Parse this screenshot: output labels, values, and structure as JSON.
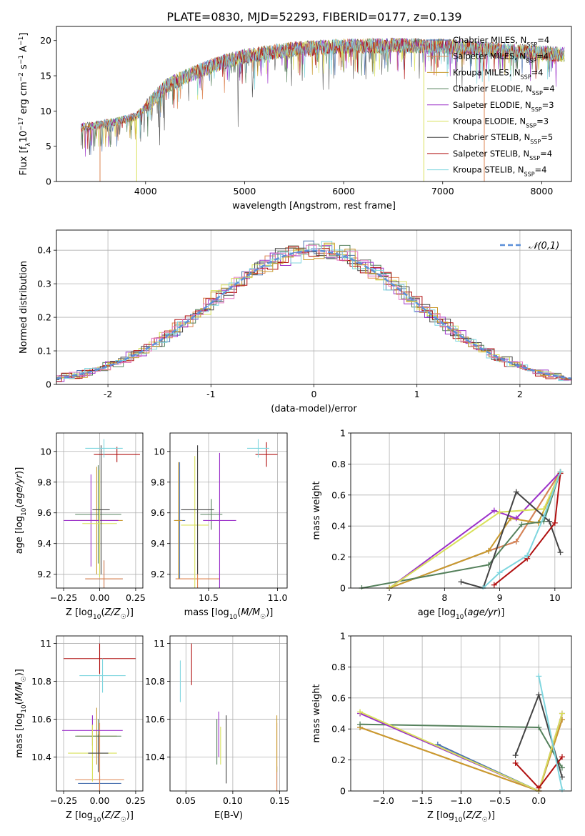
{
  "figure_title": "PLATE=0830, MJD=52293, FIBERID=0177, z=0.139",
  "models": [
    {
      "name": "Chabrier MILES",
      "nssp": "4",
      "color": "#4c72b0"
    },
    {
      "name": "Salpeter MILES",
      "nssp": "4",
      "color": "#dd8452"
    },
    {
      "name": "Kroupa MILES",
      "nssp": "4",
      "color": "#c99a2e"
    },
    {
      "name": "Chabrier ELODIE",
      "nssp": "4",
      "color": "#55815c"
    },
    {
      "name": "Salpeter ELODIE",
      "nssp": "3",
      "color": "#9b30c9"
    },
    {
      "name": "Kroupa ELODIE",
      "nssp": "3",
      "color": "#d8e05a"
    },
    {
      "name": "Chabrier STELIB",
      "nssp": "5",
      "color": "#444444"
    },
    {
      "name": "Salpeter STELIB",
      "nssp": "4",
      "color": "#b01010"
    },
    {
      "name": "Kroupa STELIB",
      "nssp": "4",
      "color": "#7fd6df"
    }
  ],
  "chart_data": [
    {
      "id": "spectrum",
      "type": "line",
      "xlabel": "wavelength [Angstrom, rest frame]",
      "ylabel": "Flux [f_λ 10^-17 erg cm^-2 s^-1 A^-1]",
      "xlim": [
        3100,
        8300
      ],
      "ylim": [
        0,
        22
      ],
      "xticks": [
        4000,
        5000,
        6000,
        7000,
        8000
      ],
      "yticks": [
        0,
        5,
        10,
        15,
        20
      ],
      "grid": false,
      "legend": "top-right",
      "trend": [
        [
          3350,
          7.7
        ],
        [
          3500,
          8.0
        ],
        [
          3700,
          8.5
        ],
        [
          3900,
          9.2
        ],
        [
          4000,
          10.5
        ],
        [
          4200,
          13.5
        ],
        [
          4500,
          15.5
        ],
        [
          4800,
          17.0
        ],
        [
          5000,
          17.8
        ],
        [
          5500,
          18.8
        ],
        [
          6000,
          19.2
        ],
        [
          6500,
          19.3
        ],
        [
          7000,
          19.2
        ],
        [
          7500,
          18.7
        ],
        [
          8000,
          18.2
        ],
        [
          8230,
          18.0
        ]
      ],
      "spikes": [
        [
          3540,
          0
        ],
        [
          3910,
          0
        ],
        [
          6810,
          0
        ],
        [
          7420,
          0
        ]
      ]
    },
    {
      "id": "residuals",
      "type": "histogram",
      "xlabel": "(data-model)/error",
      "ylabel": "Normed distribution",
      "xlim": [
        -2.5,
        2.5
      ],
      "ylim": [
        0,
        0.46
      ],
      "xticks": [
        -2,
        -1,
        0,
        1,
        2
      ],
      "yticks": [
        0.0,
        0.1,
        0.2,
        0.3,
        0.4
      ],
      "grid": true,
      "legend": "top-right",
      "reference": {
        "name": "𝒩(0,1)",
        "mean": 0,
        "sigma": 1,
        "color": "#5b8fd9"
      },
      "bin_width": 0.1
    },
    {
      "id": "age_vs_Z",
      "type": "errorbar",
      "xlabel": "Z [log10(Z/Z☉)]",
      "ylabel": "age [log10(age/yr)]",
      "xlim": [
        -0.3,
        0.3
      ],
      "ylim": [
        9.11,
        10.12
      ],
      "xticks": [
        -0.25,
        0.0,
        0.25
      ],
      "xticklabels": [
        "−0.25",
        "0.00",
        "0.25"
      ],
      "yticks": [
        9.2,
        9.4,
        9.6,
        9.8,
        10.0
      ],
      "grid": true,
      "points": [
        {
          "model": 0,
          "x": 0.03,
          "xerr": 0.13,
          "y": 9.17,
          "yerr": 0.12
        },
        {
          "model": 1,
          "x": 0.03,
          "xerr": 0.13,
          "y": 9.17,
          "yerr": 0.12
        },
        {
          "model": 2,
          "x": -0.02,
          "xerr": 0.18,
          "y": 9.55,
          "yerr": 0.35
        },
        {
          "model": 3,
          "x": -0.01,
          "xerr": 0.16,
          "y": 9.59,
          "yerr": 0.32
        },
        {
          "model": 4,
          "x": -0.06,
          "xerr": 0.19,
          "y": 9.55,
          "yerr": 0.3
        },
        {
          "model": 5,
          "x": 0.0,
          "xerr": 0.12,
          "y": 9.53,
          "yerr": 0.35
        },
        {
          "model": 6,
          "x": 0.01,
          "xerr": 0.06,
          "y": 9.62,
          "yerr": 0.42
        },
        {
          "model": 7,
          "x": 0.12,
          "xerr": 0.16,
          "y": 9.98,
          "yerr": 0.05
        },
        {
          "model": 8,
          "x": 0.03,
          "xerr": 0.13,
          "y": 10.02,
          "yerr": 0.06
        }
      ]
    },
    {
      "id": "age_vs_mass",
      "type": "errorbar",
      "xlabel": "mass [log10(M/M☉)]",
      "ylabel": "",
      "xlim": [
        10.22,
        11.07
      ],
      "ylim": [
        9.11,
        10.12
      ],
      "xticks": [
        10.5,
        11.0
      ],
      "xticklabels": [
        "10.5",
        "11.0"
      ],
      "yticks": [
        9.2,
        9.4,
        9.6,
        9.8,
        10.0
      ],
      "grid": true,
      "points": [
        {
          "model": 0,
          "x": 10.29,
          "xerr": 0.04,
          "y": 9.55,
          "yerr": 0.38
        },
        {
          "model": 1,
          "x": 10.42,
          "xerr": 0.16,
          "y": 9.17,
          "yerr": 0.12
        },
        {
          "model": 2,
          "x": 10.28,
          "xerr": 0.03,
          "y": 9.55,
          "yerr": 0.38
        },
        {
          "model": 3,
          "x": 10.52,
          "xerr": 0.08,
          "y": 9.59,
          "yerr": 0.1
        },
        {
          "model": 4,
          "x": 10.58,
          "xerr": 0.12,
          "y": 9.55,
          "yerr": 0.44
        },
        {
          "model": 5,
          "x": 10.4,
          "xerr": 0.1,
          "y": 9.52,
          "yerr": 0.45
        },
        {
          "model": 6,
          "x": 10.42,
          "xerr": 0.12,
          "y": 9.62,
          "yerr": 0.42
        },
        {
          "model": 7,
          "x": 10.92,
          "xerr": 0.08,
          "y": 9.98,
          "yerr": 0.08
        },
        {
          "model": 8,
          "x": 10.86,
          "xerr": 0.08,
          "y": 10.02,
          "yerr": 0.06
        }
      ]
    },
    {
      "id": "weight_vs_age",
      "type": "line",
      "xlabel": "age [log10(age/yr)]",
      "ylabel": "mass weight",
      "xlim": [
        6.3,
        10.3
      ],
      "ylim": [
        0.0,
        1.0
      ],
      "xticks": [
        7,
        8,
        9,
        10
      ],
      "yticks": [
        0.0,
        0.2,
        0.4,
        0.6,
        0.8,
        1.0
      ],
      "grid": true,
      "series": [
        {
          "model": 0,
          "points": [
            [
              7.0,
              0.0
            ],
            [
              8.8,
              0.24
            ],
            [
              9.3,
              0.3
            ],
            [
              10.1,
              0.75
            ]
          ]
        },
        {
          "model": 1,
          "points": [
            [
              7.0,
              0.0
            ],
            [
              8.8,
              0.24
            ],
            [
              9.3,
              0.3
            ],
            [
              10.1,
              0.75
            ]
          ]
        },
        {
          "model": 2,
          "points": [
            [
              7.0,
              0.0
            ],
            [
              8.8,
              0.24
            ],
            [
              9.2,
              0.45
            ],
            [
              9.7,
              0.42
            ],
            [
              10.1,
              0.74
            ]
          ]
        },
        {
          "model": 3,
          "points": [
            [
              6.5,
              0.0
            ],
            [
              8.8,
              0.15
            ],
            [
              9.4,
              0.41
            ],
            [
              9.8,
              0.43
            ],
            [
              10.1,
              0.75
            ]
          ]
        },
        {
          "model": 4,
          "points": [
            [
              7.0,
              0.0
            ],
            [
              8.9,
              0.5
            ],
            [
              9.3,
              0.45
            ],
            [
              10.1,
              0.75
            ]
          ]
        },
        {
          "model": 5,
          "points": [
            [
              7.0,
              0.0
            ],
            [
              9.0,
              0.49
            ],
            [
              9.8,
              0.51
            ],
            [
              10.1,
              0.75
            ]
          ]
        },
        {
          "model": 6,
          "points": [
            [
              8.3,
              0.04
            ],
            [
              8.7,
              0.0
            ],
            [
              9.3,
              0.62
            ],
            [
              9.9,
              0.43
            ],
            [
              10.1,
              0.23
            ]
          ]
        },
        {
          "model": 7,
          "points": [
            [
              8.9,
              0.02
            ],
            [
              9.5,
              0.19
            ],
            [
              10.0,
              0.42
            ],
            [
              10.1,
              0.74
            ]
          ]
        },
        {
          "model": 8,
          "points": [
            [
              8.7,
              0.0
            ],
            [
              9.0,
              0.1
            ],
            [
              9.5,
              0.21
            ],
            [
              9.8,
              0.46
            ],
            [
              10.1,
              0.75
            ]
          ]
        }
      ]
    },
    {
      "id": "mass_vs_Z",
      "type": "errorbar",
      "xlabel": "Z [log10(Z/Z☉)]",
      "ylabel": "mass [log10(M/M☉)]",
      "xlim": [
        -0.3,
        0.3
      ],
      "ylim": [
        10.22,
        11.04
      ],
      "xticks": [
        -0.25,
        0.0,
        0.25
      ],
      "xticklabels": [
        "−0.25",
        "0.00",
        "0.25"
      ],
      "yticks": [
        10.4,
        10.6,
        10.8,
        11.0
      ],
      "grid": true,
      "points": [
        {
          "model": 0,
          "x": 0.0,
          "xerr": 0.15,
          "y": 10.26,
          "yerr": 0.04
        },
        {
          "model": 1,
          "x": 0.0,
          "xerr": 0.17,
          "y": 10.28,
          "yerr": 0.3
        },
        {
          "model": 2,
          "x": -0.02,
          "xerr": 0.14,
          "y": 10.51,
          "yerr": 0.15
        },
        {
          "model": 3,
          "x": -0.01,
          "xerr": 0.16,
          "y": 10.51,
          "yerr": 0.09
        },
        {
          "model": 4,
          "x": -0.05,
          "xerr": 0.21,
          "y": 10.54,
          "yerr": 0.08
        },
        {
          "model": 5,
          "x": -0.05,
          "xerr": 0.17,
          "y": 10.42,
          "yerr": 0.15
        },
        {
          "model": 6,
          "x": -0.01,
          "xerr": 0.07,
          "y": 10.42,
          "yerr": 0.1
        },
        {
          "model": 7,
          "x": 0.0,
          "xerr": 0.25,
          "y": 10.92,
          "yerr": 0.08
        },
        {
          "model": 8,
          "x": 0.02,
          "xerr": 0.16,
          "y": 10.83,
          "yerr": 0.09
        }
      ]
    },
    {
      "id": "mass_vs_ebv",
      "type": "errorbar",
      "xlabel": "E(B-V)",
      "ylabel": "",
      "xlim": [
        0.033,
        0.158
      ],
      "ylim": [
        10.22,
        11.04
      ],
      "xticks": [
        0.05,
        0.1,
        0.15
      ],
      "xticklabels": [
        "0.05",
        "0.10",
        "0.15"
      ],
      "yticks": [
        10.4,
        10.6,
        10.8,
        11.0
      ],
      "grid": true,
      "points": [
        {
          "model": 0,
          "x": 0.147,
          "xerr": 0.0,
          "y": 10.28,
          "yerr": 0.07
        },
        {
          "model": 1,
          "x": 0.147,
          "xerr": 0.0,
          "y": 10.4,
          "yerr": 0.18
        },
        {
          "model": 2,
          "x": 0.147,
          "xerr": 0.0,
          "y": 10.47,
          "yerr": 0.15
        },
        {
          "model": 3,
          "x": 0.083,
          "xerr": 0.0,
          "y": 10.48,
          "yerr": 0.12
        },
        {
          "model": 4,
          "x": 0.085,
          "xerr": 0.0,
          "y": 10.52,
          "yerr": 0.12
        },
        {
          "model": 5,
          "x": 0.087,
          "xerr": 0.0,
          "y": 10.46,
          "yerr": 0.1
        },
        {
          "model": 6,
          "x": 0.093,
          "xerr": 0.0,
          "y": 10.44,
          "yerr": 0.18
        },
        {
          "model": 7,
          "x": 0.056,
          "xerr": 0.0,
          "y": 10.89,
          "yerr": 0.11
        },
        {
          "model": 8,
          "x": 0.044,
          "xerr": 0.0,
          "y": 10.8,
          "yerr": 0.11
        }
      ]
    },
    {
      "id": "weight_vs_Z",
      "type": "line",
      "xlabel": "Z [log10(Z/Z☉)]",
      "ylabel": "mass weight",
      "xlim": [
        -2.42,
        0.42
      ],
      "ylim": [
        0.0,
        1.0
      ],
      "xticks": [
        -2.0,
        -1.5,
        -1.0,
        -0.5,
        0.0
      ],
      "xticklabels": [
        "−2.0",
        "−1.5",
        "−1.0",
        "−0.5",
        "0.0"
      ],
      "yticks": [
        0.0,
        0.2,
        0.4,
        0.6,
        0.8,
        1.0
      ],
      "grid": true,
      "series": [
        {
          "model": 0,
          "points": [
            [
              -1.3,
              0.3
            ],
            [
              0.0,
              0.0
            ],
            [
              0.3,
              0.46
            ]
          ]
        },
        {
          "model": 1,
          "points": [
            [
              -2.3,
              0.41
            ],
            [
              0.0,
              0.0
            ],
            [
              0.3,
              0.46
            ]
          ]
        },
        {
          "model": 2,
          "points": [
            [
              -2.3,
              0.41
            ],
            [
              0.0,
              0.0
            ],
            [
              0.3,
              0.46
            ]
          ]
        },
        {
          "model": 3,
          "points": [
            [
              -2.3,
              0.43
            ],
            [
              0.0,
              0.41
            ],
            [
              0.3,
              0.15
            ]
          ]
        },
        {
          "model": 4,
          "points": [
            [
              -2.3,
              0.5
            ],
            [
              0.0,
              0.0
            ],
            [
              0.3,
              0.5
            ]
          ]
        },
        {
          "model": 5,
          "points": [
            [
              -2.3,
              0.51
            ],
            [
              0.0,
              0.0
            ],
            [
              0.3,
              0.5
            ]
          ]
        },
        {
          "model": 6,
          "points": [
            [
              -0.3,
              0.23
            ],
            [
              0.0,
              0.62
            ],
            [
              0.3,
              0.09
            ]
          ]
        },
        {
          "model": 7,
          "points": [
            [
              -0.3,
              0.18
            ],
            [
              0.0,
              0.02
            ],
            [
              0.3,
              0.22
            ]
          ]
        },
        {
          "model": 8,
          "points": [
            [
              0.0,
              0.74
            ],
            [
              0.3,
              0.01
            ]
          ]
        }
      ]
    }
  ]
}
